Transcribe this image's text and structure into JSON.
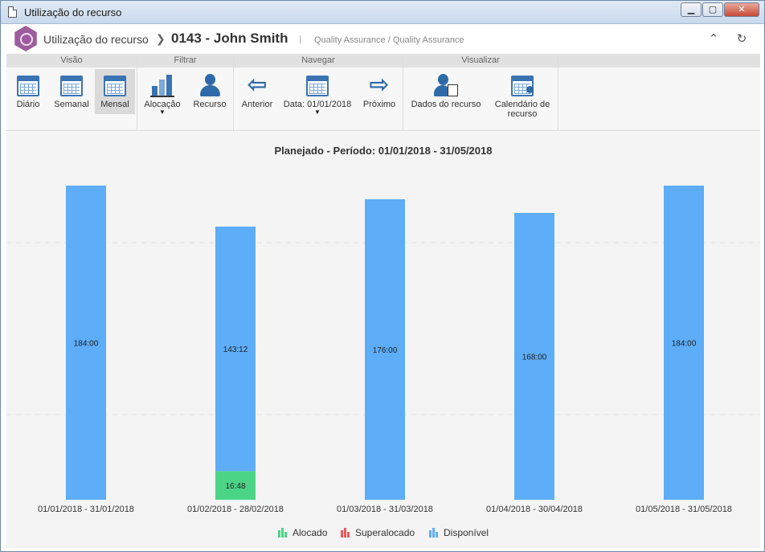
{
  "window": {
    "title": "Utilização do recurso",
    "controls": {
      "minimize": "▁",
      "maximize": "▢",
      "close": "✕"
    }
  },
  "header": {
    "module": "Utilização do recurso",
    "separator": "❯",
    "record": "0143 - John Smith",
    "pipe": "|",
    "subinfo": "Quality Assurance / Quality Assurance",
    "icons": [
      "collapse-icon",
      "refresh-icon"
    ]
  },
  "toolbar": {
    "groups": [
      {
        "title": "Visão",
        "buttons": [
          {
            "label": "Diário",
            "icon": "calendar-icon",
            "active": false
          },
          {
            "label": "Semanal",
            "icon": "calendar-icon",
            "active": false
          },
          {
            "label": "Mensal",
            "icon": "calendar-icon",
            "active": true
          }
        ]
      },
      {
        "title": "Filtrar",
        "buttons": [
          {
            "label": "Alocação",
            "icon": "bar-chart-icon",
            "dropdown": true
          },
          {
            "label": "Recurso",
            "icon": "person-icon"
          }
        ]
      },
      {
        "title": "Navegar",
        "buttons": [
          {
            "label": "Anterior",
            "icon": "arrow-left-icon"
          },
          {
            "label": "Data: 01/01/2018",
            "icon": "calendar-icon",
            "dropdown": true
          },
          {
            "label": "Próximo",
            "icon": "arrow-right-icon"
          }
        ]
      },
      {
        "title": "Visualizar",
        "buttons": [
          {
            "label": "Dados do recurso",
            "icon": "resource-data-icon"
          },
          {
            "label": "Calendário de recurso",
            "icon": "resource-calendar-icon"
          }
        ]
      }
    ]
  },
  "chart_data": {
    "type": "bar",
    "title": "Planejado - Período: 01/01/2018 - 31/05/2018",
    "categories": [
      "01/01/2018 - 31/01/2018",
      "01/02/2018 - 28/02/2018",
      "01/03/2018 - 31/03/2018",
      "01/04/2018 - 30/04/2018",
      "01/05/2018 - 31/05/2018"
    ],
    "stacked": true,
    "series": [
      {
        "name": "Alocado",
        "color": "#4cd486",
        "values": [
          0,
          16.8,
          0,
          0,
          0
        ],
        "labels": [
          "",
          "16:48",
          "",
          "",
          ""
        ]
      },
      {
        "name": "Superalocado",
        "color": "#f05a5a",
        "values": [
          0,
          0,
          0,
          0,
          0
        ],
        "labels": [
          "",
          "",
          "",
          "",
          ""
        ]
      },
      {
        "name": "Disponível",
        "color": "#5eadf8",
        "values": [
          184,
          143.2,
          176,
          168,
          184
        ],
        "labels": [
          "184:00",
          "143:12",
          "176:00",
          "168:00",
          "184:00"
        ]
      }
    ],
    "ylim": [
      0,
      184
    ],
    "grid": true,
    "legend": "bottom"
  }
}
